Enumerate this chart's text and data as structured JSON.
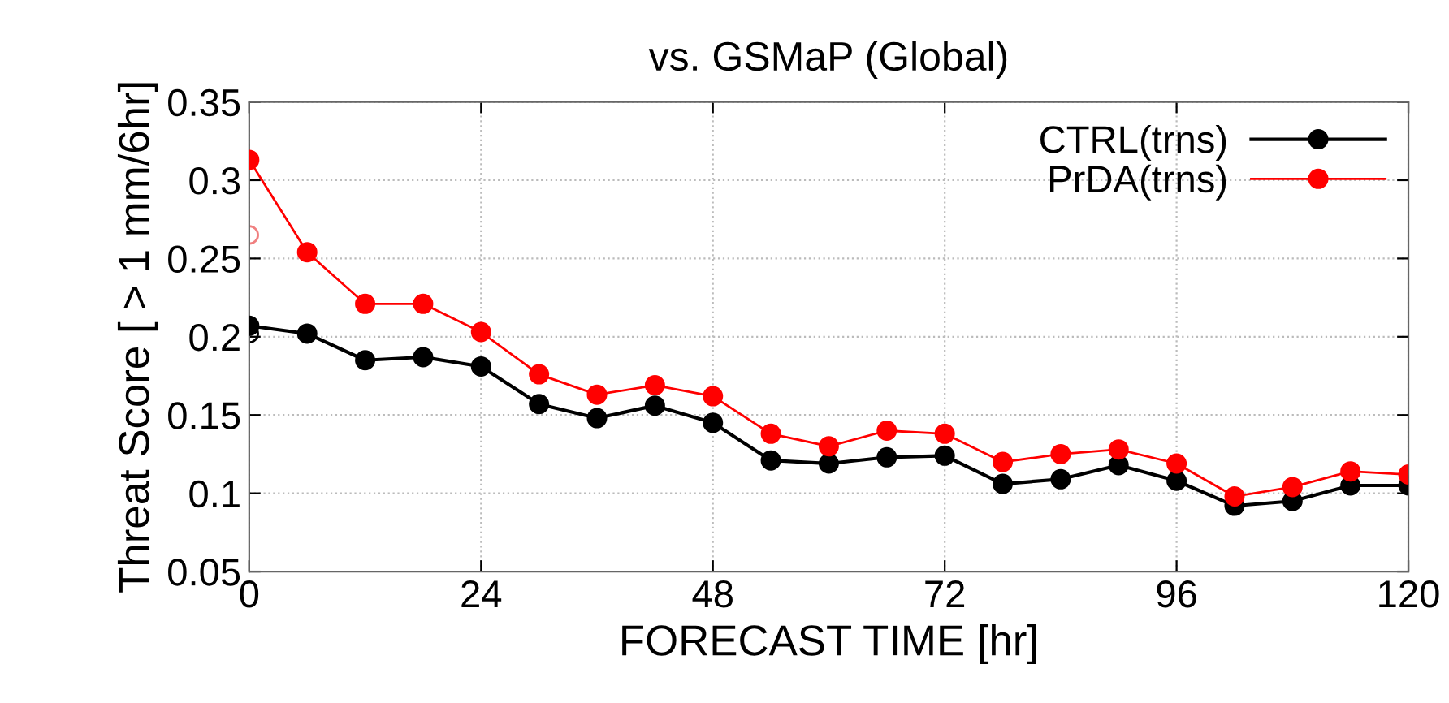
{
  "chart_data": {
    "type": "line",
    "title": "vs. GSMaP (Global)",
    "xlabel": "FORECAST TIME [hr]",
    "ylabel": "Threat Score [ > 1 mm/6hr]",
    "x": [
      0,
      6,
      12,
      18,
      24,
      30,
      36,
      42,
      48,
      54,
      60,
      66,
      72,
      78,
      84,
      90,
      96,
      102,
      108,
      114,
      120
    ],
    "xlim": [
      0,
      120
    ],
    "xticks": [
      0,
      24,
      48,
      72,
      96,
      120
    ],
    "ylim": [
      0.05,
      0.35
    ],
    "yticks": [
      0.05,
      0.1,
      0.15,
      0.2,
      0.25,
      0.3,
      0.35
    ],
    "grid": true,
    "legend": "top right",
    "marker": "circle",
    "line_style": "solid",
    "series": [
      {
        "name": "CTRL(trns)",
        "color": "#000000",
        "values": [
          0.207,
          0.202,
          0.185,
          0.187,
          0.181,
          0.157,
          0.148,
          0.156,
          0.145,
          0.121,
          0.119,
          0.123,
          0.124,
          0.106,
          0.109,
          0.118,
          0.108,
          0.092,
          0.095,
          0.105,
          0.105
        ]
      },
      {
        "name": "PrDA(trns)",
        "color": "#ff0000",
        "values": [
          0.313,
          0.254,
          0.221,
          0.221,
          0.203,
          0.176,
          0.163,
          0.169,
          0.162,
          0.138,
          0.13,
          0.14,
          0.138,
          0.12,
          0.125,
          0.128,
          0.119,
          0.098,
          0.104,
          0.114,
          0.112
        ]
      },
      {
        "type": "scatter",
        "color": "#f08080",
        "x": [
          0
        ],
        "values": [
          0.265
        ]
      },
      {
        "type": "scatter",
        "color": "#000000",
        "x": [
          0
        ],
        "values": [
          0.202
        ]
      }
    ]
  }
}
